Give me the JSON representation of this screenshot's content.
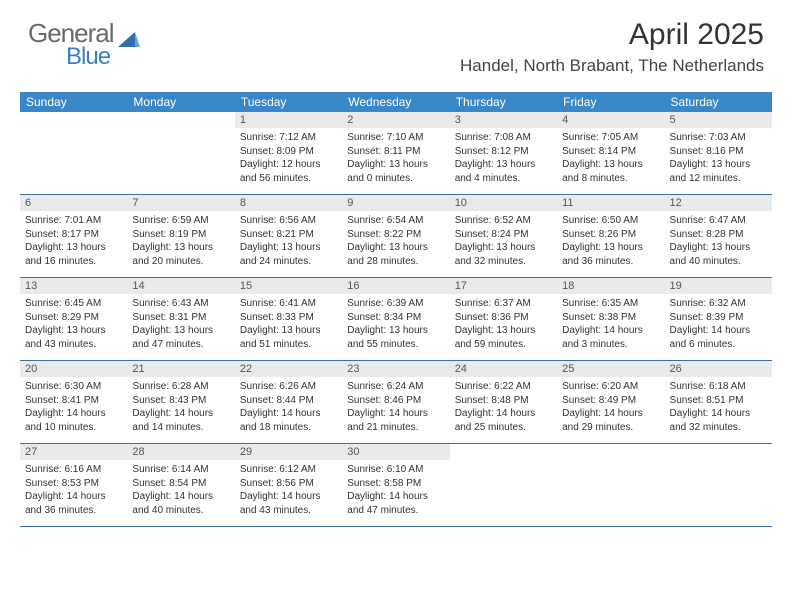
{
  "logo": {
    "textA": "General",
    "textB": "Blue"
  },
  "title": "April 2025",
  "location": "Handel, North Brabant, The Netherlands",
  "colors": {
    "header_bg": "#3a87c7",
    "header_text": "#ffffff",
    "daynum_bg": "#e8eaeb",
    "daynum_text": "#555555",
    "rule": "#3a6fa0",
    "body_text": "#333333",
    "logo_gray": "#6a6a6a",
    "logo_blue": "#3a7fc4"
  },
  "dayNames": [
    "Sunday",
    "Monday",
    "Tuesday",
    "Wednesday",
    "Thursday",
    "Friday",
    "Saturday"
  ],
  "weeks": [
    [
      null,
      null,
      {
        "n": "1",
        "sr": "Sunrise: 7:12 AM",
        "ss": "Sunset: 8:09 PM",
        "dl": "Daylight: 12 hours and 56 minutes."
      },
      {
        "n": "2",
        "sr": "Sunrise: 7:10 AM",
        "ss": "Sunset: 8:11 PM",
        "dl": "Daylight: 13 hours and 0 minutes."
      },
      {
        "n": "3",
        "sr": "Sunrise: 7:08 AM",
        "ss": "Sunset: 8:12 PM",
        "dl": "Daylight: 13 hours and 4 minutes."
      },
      {
        "n": "4",
        "sr": "Sunrise: 7:05 AM",
        "ss": "Sunset: 8:14 PM",
        "dl": "Daylight: 13 hours and 8 minutes."
      },
      {
        "n": "5",
        "sr": "Sunrise: 7:03 AM",
        "ss": "Sunset: 8:16 PM",
        "dl": "Daylight: 13 hours and 12 minutes."
      }
    ],
    [
      {
        "n": "6",
        "sr": "Sunrise: 7:01 AM",
        "ss": "Sunset: 8:17 PM",
        "dl": "Daylight: 13 hours and 16 minutes."
      },
      {
        "n": "7",
        "sr": "Sunrise: 6:59 AM",
        "ss": "Sunset: 8:19 PM",
        "dl": "Daylight: 13 hours and 20 minutes."
      },
      {
        "n": "8",
        "sr": "Sunrise: 6:56 AM",
        "ss": "Sunset: 8:21 PM",
        "dl": "Daylight: 13 hours and 24 minutes."
      },
      {
        "n": "9",
        "sr": "Sunrise: 6:54 AM",
        "ss": "Sunset: 8:22 PM",
        "dl": "Daylight: 13 hours and 28 minutes."
      },
      {
        "n": "10",
        "sr": "Sunrise: 6:52 AM",
        "ss": "Sunset: 8:24 PM",
        "dl": "Daylight: 13 hours and 32 minutes."
      },
      {
        "n": "11",
        "sr": "Sunrise: 6:50 AM",
        "ss": "Sunset: 8:26 PM",
        "dl": "Daylight: 13 hours and 36 minutes."
      },
      {
        "n": "12",
        "sr": "Sunrise: 6:47 AM",
        "ss": "Sunset: 8:28 PM",
        "dl": "Daylight: 13 hours and 40 minutes."
      }
    ],
    [
      {
        "n": "13",
        "sr": "Sunrise: 6:45 AM",
        "ss": "Sunset: 8:29 PM",
        "dl": "Daylight: 13 hours and 43 minutes."
      },
      {
        "n": "14",
        "sr": "Sunrise: 6:43 AM",
        "ss": "Sunset: 8:31 PM",
        "dl": "Daylight: 13 hours and 47 minutes."
      },
      {
        "n": "15",
        "sr": "Sunrise: 6:41 AM",
        "ss": "Sunset: 8:33 PM",
        "dl": "Daylight: 13 hours and 51 minutes."
      },
      {
        "n": "16",
        "sr": "Sunrise: 6:39 AM",
        "ss": "Sunset: 8:34 PM",
        "dl": "Daylight: 13 hours and 55 minutes."
      },
      {
        "n": "17",
        "sr": "Sunrise: 6:37 AM",
        "ss": "Sunset: 8:36 PM",
        "dl": "Daylight: 13 hours and 59 minutes."
      },
      {
        "n": "18",
        "sr": "Sunrise: 6:35 AM",
        "ss": "Sunset: 8:38 PM",
        "dl": "Daylight: 14 hours and 3 minutes."
      },
      {
        "n": "19",
        "sr": "Sunrise: 6:32 AM",
        "ss": "Sunset: 8:39 PM",
        "dl": "Daylight: 14 hours and 6 minutes."
      }
    ],
    [
      {
        "n": "20",
        "sr": "Sunrise: 6:30 AM",
        "ss": "Sunset: 8:41 PM",
        "dl": "Daylight: 14 hours and 10 minutes."
      },
      {
        "n": "21",
        "sr": "Sunrise: 6:28 AM",
        "ss": "Sunset: 8:43 PM",
        "dl": "Daylight: 14 hours and 14 minutes."
      },
      {
        "n": "22",
        "sr": "Sunrise: 6:26 AM",
        "ss": "Sunset: 8:44 PM",
        "dl": "Daylight: 14 hours and 18 minutes."
      },
      {
        "n": "23",
        "sr": "Sunrise: 6:24 AM",
        "ss": "Sunset: 8:46 PM",
        "dl": "Daylight: 14 hours and 21 minutes."
      },
      {
        "n": "24",
        "sr": "Sunrise: 6:22 AM",
        "ss": "Sunset: 8:48 PM",
        "dl": "Daylight: 14 hours and 25 minutes."
      },
      {
        "n": "25",
        "sr": "Sunrise: 6:20 AM",
        "ss": "Sunset: 8:49 PM",
        "dl": "Daylight: 14 hours and 29 minutes."
      },
      {
        "n": "26",
        "sr": "Sunrise: 6:18 AM",
        "ss": "Sunset: 8:51 PM",
        "dl": "Daylight: 14 hours and 32 minutes."
      }
    ],
    [
      {
        "n": "27",
        "sr": "Sunrise: 6:16 AM",
        "ss": "Sunset: 8:53 PM",
        "dl": "Daylight: 14 hours and 36 minutes."
      },
      {
        "n": "28",
        "sr": "Sunrise: 6:14 AM",
        "ss": "Sunset: 8:54 PM",
        "dl": "Daylight: 14 hours and 40 minutes."
      },
      {
        "n": "29",
        "sr": "Sunrise: 6:12 AM",
        "ss": "Sunset: 8:56 PM",
        "dl": "Daylight: 14 hours and 43 minutes."
      },
      {
        "n": "30",
        "sr": "Sunrise: 6:10 AM",
        "ss": "Sunset: 8:58 PM",
        "dl": "Daylight: 14 hours and 47 minutes."
      },
      null,
      null,
      null
    ]
  ]
}
